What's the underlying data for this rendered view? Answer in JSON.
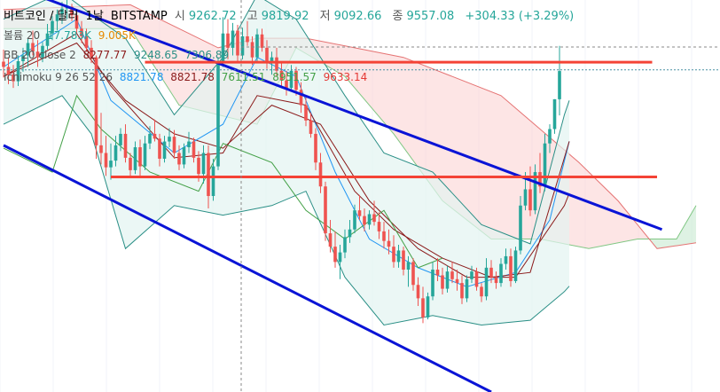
{
  "header": {
    "symbol": "비트코인 / 달러",
    "interval": "1날",
    "exchange": "BITSTAMP",
    "ohlc": [
      {
        "key": "시",
        "value": "9262.72"
      },
      {
        "key": "고",
        "value": "9819.92"
      },
      {
        "key": "저",
        "value": "9092.66"
      },
      {
        "key": "종",
        "value": "9557.08"
      }
    ],
    "change": "+304.33 (+3.29%)"
  },
  "legend": {
    "volume": {
      "name": "볼륨 20",
      "v1": "17.783K",
      "v2": "9.005K"
    },
    "bb": {
      "name": "BB 20 close 2",
      "basis": "8277.77",
      "upper": "9248.65",
      "lower": "7306.89"
    },
    "ichimoku": {
      "name": "Ichimoku 9 26 52 26",
      "conversion": "8821.78",
      "base": "8821.78",
      "lagging": "7611.51",
      "lead_a": "8951.57",
      "lead_b": "9633.14"
    }
  },
  "colors": {
    "up": "#26a69a",
    "down": "#ef5350",
    "trend": "#0a14d6",
    "level": "#f44336",
    "bb": "#2a8f86",
    "conversion": "#2196f3",
    "base": "#8b1a1a",
    "lagging": "#43a047",
    "cloud_bull": "#c8ead0",
    "cloud_bear": "#fbd4d4",
    "bb_fill": "#e3f3f1"
  },
  "chart_data": {
    "type": "candlestick",
    "ylim": [
      6200,
      10300
    ],
    "crosshair_y": 9570,
    "levels": [
      9650,
      8450
    ],
    "trendlines": [
      {
        "name": "upper",
        "from": [
          0,
          10480
        ],
        "to": [
          135,
          7900
        ]
      },
      {
        "name": "lower",
        "from": [
          0,
          8780
        ],
        "to": [
          100,
          6200
        ]
      }
    ],
    "candles": [
      [
        9655,
        9780,
        9490,
        9600
      ],
      [
        9600,
        9700,
        9420,
        9520
      ],
      [
        9520,
        9620,
        9380,
        9450
      ],
      [
        9450,
        9720,
        9400,
        9660
      ],
      [
        9660,
        9800,
        9550,
        9720
      ],
      [
        9720,
        9900,
        9600,
        9850
      ],
      [
        9850,
        9980,
        9720,
        9760
      ],
      [
        9760,
        9880,
        9600,
        9700
      ],
      [
        9700,
        9860,
        9650,
        9820
      ],
      [
        9820,
        10050,
        9780,
        9950
      ],
      [
        9950,
        10130,
        9880,
        10080
      ],
      [
        10080,
        10200,
        9980,
        10150
      ],
      [
        10150,
        10280,
        10050,
        10210
      ],
      [
        10210,
        10300,
        10100,
        10230
      ],
      [
        10230,
        10260,
        10080,
        10140
      ],
      [
        10140,
        10200,
        9950,
        10000
      ],
      [
        10000,
        10080,
        9850,
        9920
      ],
      [
        9920,
        10000,
        9760,
        9800
      ],
      [
        9800,
        9880,
        9640,
        9700
      ],
      [
        9700,
        9720,
        8640,
        8780
      ],
      [
        8780,
        9120,
        8580,
        8700
      ],
      [
        8700,
        8880,
        8460,
        8550
      ],
      [
        8550,
        8800,
        8420,
        8620
      ],
      [
        8620,
        8880,
        8560,
        8780
      ],
      [
        8780,
        8960,
        8720,
        8900
      ],
      [
        8900,
        9000,
        8600,
        8650
      ],
      [
        8650,
        8700,
        8450,
        8520
      ],
      [
        8520,
        8820,
        8480,
        8760
      ],
      [
        8760,
        8840,
        8440,
        8560
      ],
      [
        8560,
        8880,
        8520,
        8800
      ],
      [
        8800,
        8980,
        8740,
        8900
      ],
      [
        8900,
        9050,
        8820,
        8850
      ],
      [
        8850,
        8900,
        8560,
        8640
      ],
      [
        8640,
        8880,
        8600,
        8820
      ],
      [
        8820,
        8960,
        8760,
        8870
      ],
      [
        8870,
        8940,
        8640,
        8700
      ],
      [
        8700,
        8780,
        8520,
        8580
      ],
      [
        8580,
        8800,
        8540,
        8760
      ],
      [
        8760,
        8920,
        8700,
        8820
      ],
      [
        8820,
        8860,
        8600,
        8650
      ],
      [
        8650,
        8720,
        8400,
        8480
      ],
      [
        8480,
        8780,
        8380,
        8700
      ],
      [
        8700,
        8780,
        8120,
        8250
      ],
      [
        8250,
        8640,
        8200,
        8560
      ],
      [
        8560,
        9700,
        8520,
        9650
      ],
      [
        9650,
        10120,
        9600,
        9950
      ],
      [
        9950,
        10100,
        9680,
        9800
      ],
      [
        9800,
        10060,
        9720,
        9980
      ],
      [
        9980,
        10040,
        9660,
        9720
      ],
      [
        9720,
        10010,
        9680,
        9920
      ],
      [
        9920,
        10080,
        9820,
        9860
      ],
      [
        9860,
        9920,
        9620,
        9700
      ],
      [
        9700,
        10000,
        9660,
        9940
      ],
      [
        9940,
        10000,
        9760,
        9800
      ],
      [
        9800,
        9880,
        9580,
        9640
      ],
      [
        9640,
        9760,
        9520,
        9700
      ],
      [
        9700,
        9800,
        9500,
        9560
      ],
      [
        9560,
        9660,
        9380,
        9460
      ],
      [
        9460,
        9560,
        9300,
        9380
      ],
      [
        9380,
        9620,
        9340,
        9560
      ],
      [
        9560,
        9600,
        9300,
        9360
      ],
      [
        9360,
        9440,
        9120,
        9200
      ],
      [
        9200,
        9300,
        8980,
        9040
      ],
      [
        9040,
        9120,
        8860,
        8900
      ],
      [
        8900,
        8960,
        8520,
        8600
      ],
      [
        8600,
        8700,
        8280,
        8350
      ],
      [
        8350,
        8400,
        7780,
        7860
      ],
      [
        7860,
        8000,
        7660,
        7720
      ],
      [
        7720,
        7880,
        7500,
        7560
      ],
      [
        7560,
        7740,
        7380,
        7660
      ],
      [
        7660,
        7900,
        7600,
        7820
      ],
      [
        7820,
        8000,
        7760,
        7900
      ],
      [
        7900,
        8160,
        7860,
        8100
      ],
      [
        8100,
        8260,
        8000,
        8040
      ],
      [
        8040,
        8120,
        7880,
        7950
      ],
      [
        7950,
        8100,
        7900,
        8060
      ],
      [
        8060,
        8200,
        7940,
        7980
      ],
      [
        7980,
        8080,
        7800,
        7880
      ],
      [
        7880,
        7980,
        7700,
        7780
      ],
      [
        7780,
        7900,
        7640,
        7720
      ],
      [
        7720,
        7840,
        7500,
        7560
      ],
      [
        7560,
        7740,
        7500,
        7680
      ],
      [
        7680,
        7720,
        7420,
        7480
      ],
      [
        7480,
        7620,
        7300,
        7560
      ],
      [
        7560,
        7600,
        7260,
        7320
      ],
      [
        7320,
        7400,
        7100,
        7180
      ],
      [
        7180,
        7300,
        6920,
        6980
      ],
      [
        6980,
        7240,
        6960,
        7200
      ],
      [
        7200,
        7560,
        7160,
        7480
      ],
      [
        7480,
        7600,
        7360,
        7420
      ],
      [
        7420,
        7500,
        7220,
        7280
      ],
      [
        7280,
        7520,
        7240,
        7460
      ],
      [
        7460,
        7560,
        7340,
        7380
      ],
      [
        7380,
        7480,
        7260,
        7340
      ],
      [
        7340,
        7420,
        7120,
        7180
      ],
      [
        7180,
        7420,
        7140,
        7380
      ],
      [
        7380,
        7520,
        7340,
        7460
      ],
      [
        7460,
        7500,
        7260,
        7300
      ],
      [
        7300,
        7340,
        7140,
        7200
      ],
      [
        7200,
        7600,
        7160,
        7500
      ],
      [
        7500,
        7580,
        7340,
        7400
      ],
      [
        7400,
        7460,
        7280,
        7340
      ],
      [
        7340,
        7600,
        7300,
        7540
      ],
      [
        7540,
        7700,
        7480,
        7620
      ],
      [
        7620,
        7700,
        7300,
        7360
      ],
      [
        7360,
        7720,
        7340,
        7680
      ],
      [
        7680,
        8250,
        7640,
        8150
      ],
      [
        8150,
        8500,
        8100,
        8320
      ],
      [
        8320,
        8560,
        8040,
        8100
      ],
      [
        8100,
        8580,
        8060,
        8500
      ],
      [
        8500,
        8700,
        8280,
        8350
      ],
      [
        8350,
        8900,
        8300,
        8800
      ],
      [
        8800,
        9000,
        8700,
        8950
      ],
      [
        8950,
        9262,
        8900,
        9262
      ],
      [
        9262,
        9819.92,
        9092.66,
        9557.08
      ]
    ],
    "bb_basis": [
      [
        0,
        9500
      ],
      [
        15,
        9850
      ],
      [
        25,
        9250
      ],
      [
        35,
        8900
      ],
      [
        45,
        8750
      ],
      [
        55,
        9200
      ],
      [
        65,
        9000
      ],
      [
        75,
        8200
      ],
      [
        85,
        7700
      ],
      [
        95,
        7400
      ],
      [
        105,
        7400
      ],
      [
        115,
        8150
      ],
      [
        116,
        8277.77
      ]
    ],
    "bb_upper": [
      [
        0,
        10100
      ],
      [
        12,
        10380
      ],
      [
        18,
        10150
      ],
      [
        25,
        9900
      ],
      [
        35,
        9100
      ],
      [
        45,
        9700
      ],
      [
        52,
        10350
      ],
      [
        60,
        10100
      ],
      [
        70,
        9300
      ],
      [
        78,
        8700
      ],
      [
        88,
        8500
      ],
      [
        98,
        7950
      ],
      [
        108,
        7750
      ],
      [
        115,
        9100
      ],
      [
        116,
        9248.65
      ]
    ],
    "bb_lower": [
      [
        0,
        9000
      ],
      [
        12,
        9300
      ],
      [
        18,
        8900
      ],
      [
        25,
        7700
      ],
      [
        35,
        8150
      ],
      [
        45,
        8050
      ],
      [
        55,
        8150
      ],
      [
        62,
        8300
      ],
      [
        70,
        7400
      ],
      [
        78,
        6900
      ],
      [
        88,
        7000
      ],
      [
        98,
        6900
      ],
      [
        108,
        6950
      ],
      [
        115,
        7250
      ],
      [
        116,
        7306.89
      ]
    ],
    "conversion": [
      [
        0,
        9600
      ],
      [
        15,
        10100
      ],
      [
        22,
        9250
      ],
      [
        35,
        8700
      ],
      [
        45,
        9000
      ],
      [
        52,
        9700
      ],
      [
        60,
        9500
      ],
      [
        68,
        8500
      ],
      [
        75,
        7800
      ],
      [
        85,
        7500
      ],
      [
        95,
        7300
      ],
      [
        105,
        7450
      ],
      [
        112,
        8000
      ],
      [
        116,
        8821.78
      ]
    ],
    "base": [
      [
        0,
        9500
      ],
      [
        15,
        9950
      ],
      [
        22,
        9400
      ],
      [
        35,
        8650
      ],
      [
        45,
        8700
      ],
      [
        52,
        9300
      ],
      [
        62,
        9200
      ],
      [
        72,
        8300
      ],
      [
        80,
        7900
      ],
      [
        90,
        7600
      ],
      [
        100,
        7400
      ],
      [
        108,
        7450
      ],
      [
        116,
        8821.78
      ]
    ],
    "lagging": [
      [
        0,
        8750
      ],
      [
        10,
        8500
      ],
      [
        15,
        9300
      ],
      [
        20,
        8950
      ],
      [
        30,
        8500
      ],
      [
        40,
        8300
      ],
      [
        45,
        8800
      ],
      [
        55,
        8600
      ],
      [
        62,
        8100
      ],
      [
        70,
        7800
      ],
      [
        78,
        8100
      ],
      [
        85,
        7500
      ],
      [
        90,
        7600
      ]
    ],
    "lead_a": [
      [
        0,
        10000
      ],
      [
        26,
        10000
      ],
      [
        36,
        9200
      ],
      [
        44,
        9100
      ],
      [
        52,
        9000
      ],
      [
        60,
        9800
      ],
      [
        70,
        9500
      ],
      [
        80,
        8900
      ],
      [
        90,
        8200
      ],
      [
        100,
        7800
      ],
      [
        110,
        7800
      ],
      [
        120,
        7700
      ],
      [
        130,
        7800
      ],
      [
        138,
        7800
      ],
      [
        142,
        8151
      ]
    ],
    "lead_b": [
      [
        0,
        10200
      ],
      [
        26,
        10250
      ],
      [
        36,
        10000
      ],
      [
        44,
        9800
      ],
      [
        52,
        9900
      ],
      [
        62,
        9900
      ],
      [
        72,
        9800
      ],
      [
        82,
        9700
      ],
      [
        92,
        9500
      ],
      [
        102,
        9300
      ],
      [
        110,
        8950
      ],
      [
        118,
        8600
      ],
      [
        126,
        8200
      ],
      [
        134,
        7700
      ],
      [
        142,
        7760
      ]
    ]
  }
}
